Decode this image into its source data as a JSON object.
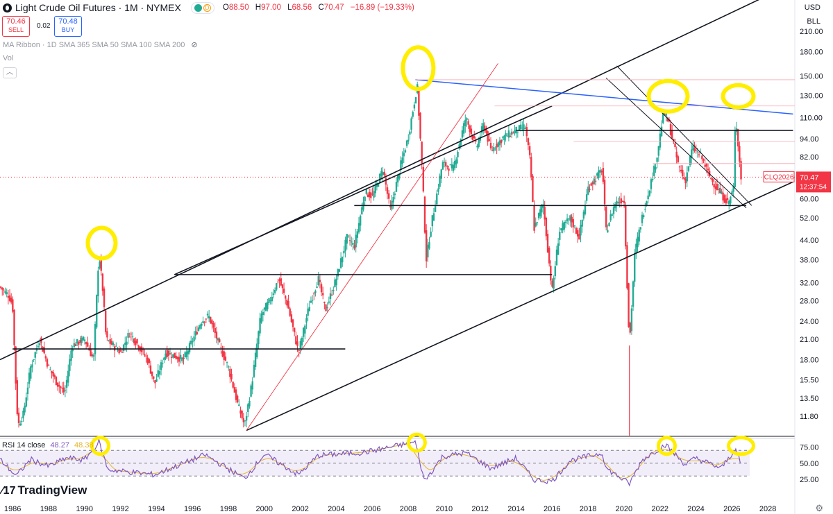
{
  "header": {
    "title": "Light Crude Oil Futures · 1M · NYMEX",
    "ohlc": [
      {
        "k": "O",
        "v": "88.50"
      },
      {
        "k": "H",
        "v": "97.00"
      },
      {
        "k": "L",
        "v": "68.56"
      },
      {
        "k": "C",
        "v": "70.47"
      }
    ],
    "change": "−16.89 (−19.33%)",
    "delayed_badge": "D",
    "sell_price": "70.46",
    "sell_label": "SELL",
    "buy_price": "70.48",
    "buy_label": "BUY",
    "spread": "0.02"
  },
  "indicators": {
    "ma_ribbon": "MA Ribbon · 1D SMA 365 SMA 50 SMA 100 SMA 200",
    "vol": "Vol",
    "rsi_label": "RSI 14 close",
    "rsi_value": "48.27",
    "rsi_ma_value": "48.38"
  },
  "axis": {
    "currency": "USD",
    "unit": "BLL",
    "price_ticks": [
      "210.00",
      "180.00",
      "150.00",
      "130.00",
      "110.00",
      "94.00",
      "82.00",
      "60.00",
      "52.00",
      "44.00",
      "38.00",
      "32.00",
      "28.00",
      "24.00",
      "21.00",
      "18.00",
      "15.50",
      "13.50",
      "11.80"
    ],
    "rsi_ticks": [
      "75.00",
      "50.00",
      "25.00"
    ],
    "year_ticks": [
      "1986",
      "1988",
      "1990",
      "1992",
      "1994",
      "1996",
      "1998",
      "2000",
      "2002",
      "2004",
      "2006",
      "2008",
      "2010",
      "2012",
      "2014",
      "2016",
      "2018",
      "2020",
      "2022",
      "2024",
      "2026",
      "2028"
    ]
  },
  "last_price": {
    "symbol": "CLQ2026",
    "price": "70.47",
    "countdown": "12:37:54"
  },
  "branding": "TradingView",
  "colors": {
    "up": "#22ab94",
    "down": "#f23645",
    "rsi": "#7e57c2",
    "rsi_ma": "#e5b52b",
    "highlight": "#ffee00",
    "trend_blue": "#2962ff"
  },
  "chart_data": {
    "type": "candlestick",
    "title": "Light Crude Oil Futures · 1M · NYMEX",
    "scale": "log",
    "ylim": [
      10.2,
      265
    ],
    "x_range": [
      1985.3,
      2029.5
    ],
    "price_path": [
      [
        1985.3,
        31
      ],
      [
        1985.8,
        29
      ],
      [
        1986.0,
        27
      ],
      [
        1986.2,
        14
      ],
      [
        1986.3,
        11
      ],
      [
        1986.6,
        12
      ],
      [
        1987.0,
        17
      ],
      [
        1987.5,
        21
      ],
      [
        1988.0,
        17
      ],
      [
        1988.5,
        15
      ],
      [
        1988.9,
        14
      ],
      [
        1989.3,
        20
      ],
      [
        1990.0,
        21
      ],
      [
        1990.5,
        18
      ],
      [
        1990.8,
        40
      ],
      [
        1991.0,
        31
      ],
      [
        1991.2,
        21
      ],
      [
        1992.0,
        19
      ],
      [
        1992.5,
        22
      ],
      [
        1993.0,
        20
      ],
      [
        1993.5,
        18
      ],
      [
        1993.9,
        15
      ],
      [
        1994.5,
        19
      ],
      [
        1995.5,
        18
      ],
      [
        1996.5,
        24
      ],
      [
        1996.9,
        25
      ],
      [
        1997.5,
        20
      ],
      [
        1998.0,
        17
      ],
      [
        1998.5,
        13
      ],
      [
        1998.9,
        11
      ],
      [
        1999.3,
        15
      ],
      [
        1999.8,
        25
      ],
      [
        2000.3,
        28
      ],
      [
        2000.8,
        33
      ],
      [
        2001.3,
        27
      ],
      [
        2001.9,
        19
      ],
      [
        2002.5,
        27
      ],
      [
        2003.0,
        33
      ],
      [
        2003.4,
        26
      ],
      [
        2004.0,
        33
      ],
      [
        2004.6,
        45
      ],
      [
        2005.0,
        42
      ],
      [
        2005.6,
        63
      ],
      [
        2006.0,
        61
      ],
      [
        2006.6,
        75
      ],
      [
        2007.0,
        55
      ],
      [
        2007.6,
        78
      ],
      [
        2008.0,
        95
      ],
      [
        2008.5,
        140
      ],
      [
        2008.8,
        70
      ],
      [
        2009.0,
        38
      ],
      [
        2009.3,
        50
      ],
      [
        2009.9,
        78
      ],
      [
        2010.5,
        75
      ],
      [
        2011.2,
        110
      ],
      [
        2011.8,
        88
      ],
      [
        2012.2,
        105
      ],
      [
        2012.6,
        86
      ],
      [
        2013.3,
        95
      ],
      [
        2014.0,
        100
      ],
      [
        2014.5,
        103
      ],
      [
        2014.8,
        78
      ],
      [
        2015.0,
        48
      ],
      [
        2015.5,
        58
      ],
      [
        2016.0,
        30
      ],
      [
        2016.4,
        47
      ],
      [
        2017.0,
        52
      ],
      [
        2017.5,
        45
      ],
      [
        2018.0,
        65
      ],
      [
        2018.8,
        75
      ],
      [
        2019.0,
        47
      ],
      [
        2019.5,
        58
      ],
      [
        2020.0,
        60
      ],
      [
        2020.3,
        20
      ],
      [
        2020.6,
        40
      ],
      [
        2021.0,
        52
      ],
      [
        2021.8,
        80
      ],
      [
        2022.2,
        115
      ],
      [
        2022.5,
        105
      ],
      [
        2023.0,
        78
      ],
      [
        2023.4,
        68
      ],
      [
        2023.8,
        88
      ],
      [
        2024.3,
        82
      ],
      [
        2024.8,
        70
      ],
      [
        2025.4,
        62
      ],
      [
        2025.8,
        58
      ],
      [
        2026.1,
        65
      ],
      [
        2026.2,
        113
      ],
      [
        2026.5,
        70.47
      ]
    ],
    "rsi": [
      [
        1985.3,
        56
      ],
      [
        1986.2,
        30
      ],
      [
        1987.0,
        56
      ],
      [
        1988.0,
        45
      ],
      [
        1989.0,
        58
      ],
      [
        1990.0,
        55
      ],
      [
        1990.8,
        83
      ],
      [
        1991.3,
        40
      ],
      [
        1993.9,
        32
      ],
      [
        1996.7,
        63
      ],
      [
        1998.9,
        26
      ],
      [
        2000.0,
        64
      ],
      [
        2001.9,
        32
      ],
      [
        2003.0,
        62
      ],
      [
        2005.6,
        67
      ],
      [
        2008.4,
        83
      ],
      [
        2008.9,
        22
      ],
      [
        2009.9,
        60
      ],
      [
        2011.2,
        66
      ],
      [
        2012.6,
        42
      ],
      [
        2014.0,
        58
      ],
      [
        2015.0,
        24
      ],
      [
        2016.0,
        22
      ],
      [
        2017.0,
        54
      ],
      [
        2018.8,
        66
      ],
      [
        2019.0,
        42
      ],
      [
        2020.3,
        18
      ],
      [
        2021.0,
        55
      ],
      [
        2022.3,
        79
      ],
      [
        2023.4,
        48
      ],
      [
        2024.0,
        58
      ],
      [
        2025.4,
        42
      ],
      [
        2026.2,
        72
      ],
      [
        2026.5,
        48
      ]
    ],
    "rsi_levels": [
      70,
      50,
      30
    ],
    "trendlines": [
      {
        "kind": "channel_upper",
        "from": [
          1985.3,
          18
        ],
        "to": [
          2029.4,
          300
        ]
      },
      {
        "kind": "channel_mid",
        "from": [
          1995.0,
          34
        ],
        "to": [
          2016.0,
          120
        ]
      },
      {
        "kind": "channel_lower",
        "from": [
          1999.0,
          10.6
        ],
        "to": [
          2029.4,
          68
        ]
      },
      {
        "kind": "resistance_blue",
        "from": [
          2008.4,
          146
        ],
        "to": [
          2029.4,
          113
        ]
      },
      {
        "kind": "red_support",
        "from": [
          1999.0,
          10.6
        ],
        "to": [
          2013.0,
          165
        ]
      },
      {
        "kind": "horizontal",
        "price": 100,
        "from": 2014.0,
        "to": 2029.4
      },
      {
        "kind": "horizontal",
        "price": 57,
        "from": 2005.0,
        "to": 2026.8
      },
      {
        "kind": "horizontal",
        "price": 34,
        "from": 1995.0,
        "to": 2016.0
      },
      {
        "kind": "horizontal",
        "price": 19.5,
        "from": 1986.0,
        "to": 2004.5
      },
      {
        "kind": "down_channel",
        "from": [
          2019.0,
          148
        ],
        "to": [
          2026.8,
          56
        ]
      },
      {
        "kind": "down_channel",
        "from": [
          2019.6,
          162
        ],
        "to": [
          2027.1,
          57
        ]
      }
    ],
    "highlighted_peaks": [
      1990.8,
      2008.4,
      2022.3,
      2026.2
    ]
  }
}
